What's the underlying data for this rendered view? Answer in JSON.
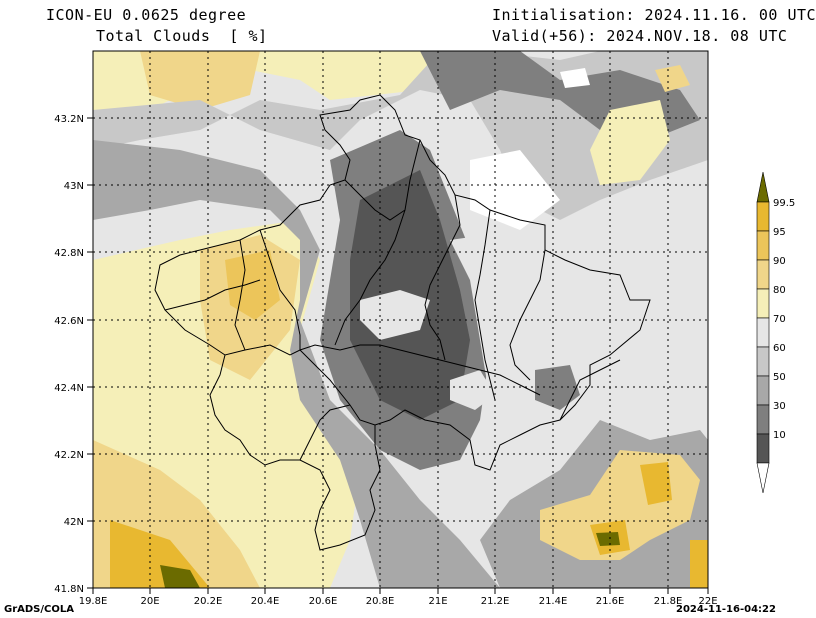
{
  "header": {
    "model": "ICON-EU 0.0625 degree",
    "variable": "Total Clouds  [ %]",
    "init": "Initialisation: 2024.11.16. 00 UTC",
    "valid": "Valid(+56): 2024.NOV.18. 08 UTC"
  },
  "axes": {
    "lon_labels": [
      "19.8E",
      "20E",
      "20.2E",
      "20.4E",
      "20.6E",
      "20.8E",
      "21E",
      "21.2E",
      "21.4E",
      "21.6E",
      "21.8E",
      "22E"
    ],
    "lat_labels": [
      "43.2N",
      "43N",
      "42.8N",
      "42.6N",
      "42.4N",
      "42.2N",
      "42N",
      "41.8N"
    ]
  },
  "legend": {
    "labels": [
      "99.5",
      "95",
      "90",
      "80",
      "70",
      "60",
      "50",
      "30",
      "10"
    ],
    "colors": [
      "#6b6b00",
      "#e8b830",
      "#ecc55a",
      "#f0d68a",
      "#f5efb8",
      "#e6e6e6",
      "#c8c8c8",
      "#a8a8a8",
      "#7f7f7f",
      "#555555",
      "#ffffff"
    ]
  },
  "footer": {
    "left": "GrADS/COLA",
    "right": "2024-11-16-04:22"
  }
}
